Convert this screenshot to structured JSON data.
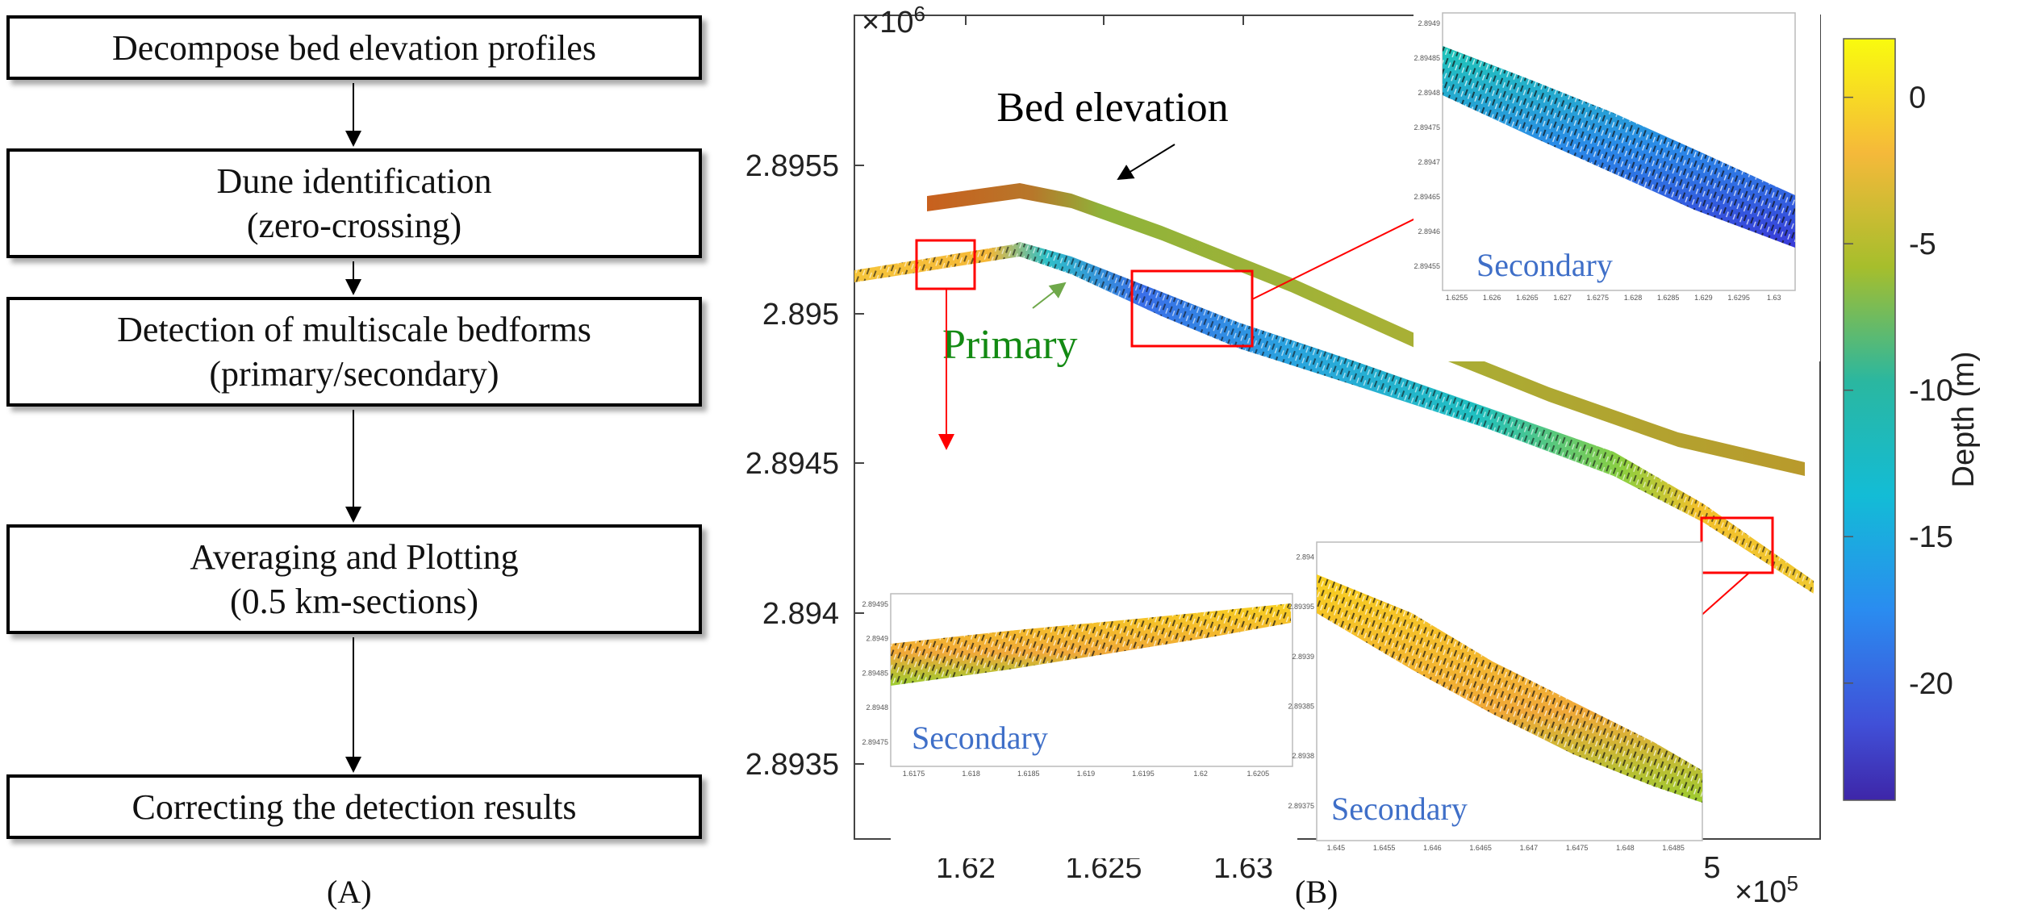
{
  "flowchart": {
    "steps": [
      {
        "line1": "Decompose bed elevation profiles",
        "line2": ""
      },
      {
        "line1": "Dune identification",
        "line2": "(zero-crossing)"
      },
      {
        "line1": "Detection of multiscale bedforms",
        "line2": "(primary/secondary)"
      },
      {
        "line1": "Averaging and Plotting",
        "line2": "(0.5 km-sections)"
      },
      {
        "line1": "Correcting the detection results",
        "line2": ""
      }
    ],
    "panel_label": "(A)"
  },
  "map": {
    "panel_label": "(B)",
    "y_exponent": "×10",
    "y_exponent_power": "6",
    "x_exponent": "×10",
    "x_exponent_power": "5",
    "y_ticks": [
      "2.8955",
      "2.895",
      "2.8945",
      "2.894",
      "2.8935"
    ],
    "x_ticks": [
      "1.62",
      "1.625",
      "1.63",
      "5"
    ],
    "labels": {
      "bed": "Bed elevation",
      "primary": "Primary"
    },
    "colorbar": {
      "label": "Depth (m)",
      "ticks": [
        "0",
        "-5",
        "-10",
        "-15",
        "-20"
      ],
      "range": [
        -24,
        2
      ]
    },
    "insets": [
      {
        "label": "Secondary",
        "y_ticks": [
          "2.8949",
          "2.89485",
          "2.8948",
          "2.89475",
          "2.8947",
          "2.89465",
          "2.8946",
          "2.89455"
        ],
        "x_ticks": [
          "1.6255",
          "1.626",
          "1.6265",
          "1.627",
          "1.6275",
          "1.628",
          "1.6285",
          "1.629",
          "1.6295",
          "1.63"
        ]
      },
      {
        "label": "Secondary",
        "y_ticks": [
          "2.89495",
          "2.8949",
          "2.89485",
          "2.8948",
          "2.89475"
        ],
        "x_ticks": [
          "1.6175",
          "1.618",
          "1.6185",
          "1.619",
          "1.6195",
          "1.62",
          "1.6205"
        ]
      },
      {
        "label": "Secondary",
        "y_ticks": [
          "2.894",
          "2.89395",
          "2.8939",
          "2.89385",
          "2.8938",
          "2.89375"
        ],
        "x_ticks": [
          "1.645",
          "1.6455",
          "1.646",
          "1.6465",
          "1.647",
          "1.6475",
          "1.648",
          "1.6485"
        ]
      }
    ],
    "colors": {
      "highlight": "#ff0000",
      "primary_label": "#138a13",
      "secondary_label": "#3f6fc8"
    }
  }
}
